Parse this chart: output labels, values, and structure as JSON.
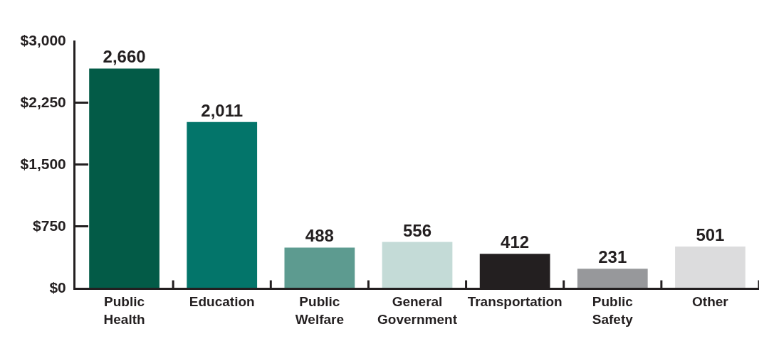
{
  "chart_data": {
    "type": "bar",
    "categories": [
      "Public Health",
      "Education",
      "Public Welfare",
      "General Government",
      "Transportation",
      "Public Safety",
      "Other"
    ],
    "values": [
      2660,
      2011,
      488,
      556,
      412,
      231,
      501
    ],
    "colors": [
      "#035b47",
      "#03756a",
      "#5d9b90",
      "#c4dbd7",
      "#231f20",
      "#97989b",
      "#dcdcdd"
    ],
    "value_labels": [
      "2,660",
      "2,011",
      "488",
      "556",
      "412",
      "231",
      "501"
    ],
    "ylim": [
      0,
      3000
    ],
    "yticks": [
      {
        "value": 0,
        "label": "$0"
      },
      {
        "value": 750,
        "label": "$750"
      },
      {
        "value": 1500,
        "label": "$1,500"
      },
      {
        "value": 2250,
        "label": "$2,250"
      },
      {
        "value": 3000,
        "label": "$3,000"
      }
    ],
    "tick_labels": "xy"
  }
}
